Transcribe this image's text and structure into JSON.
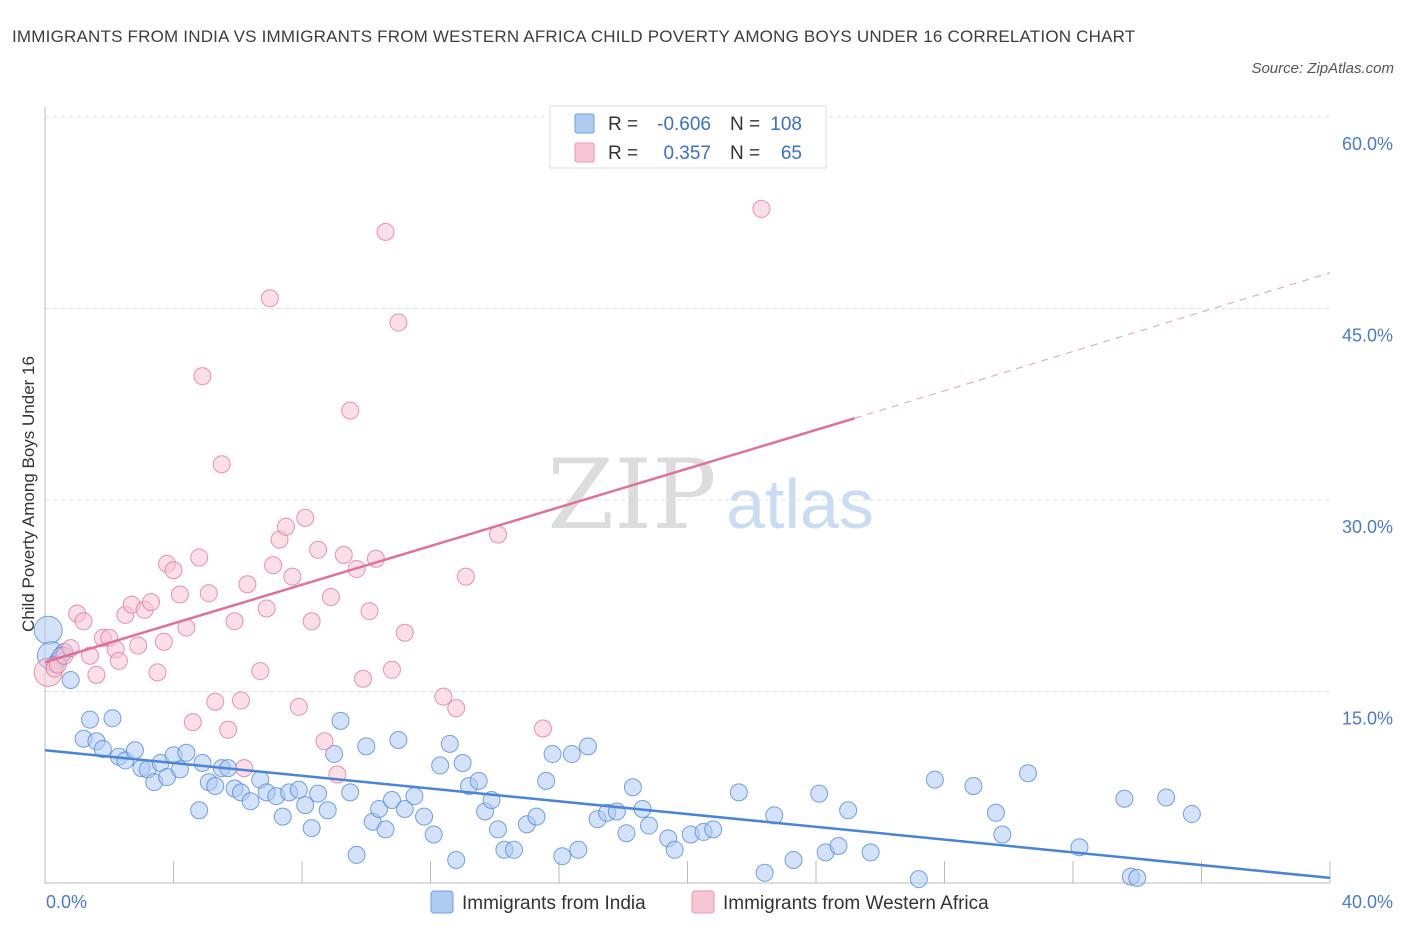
{
  "title": "IMMIGRANTS FROM INDIA VS IMMIGRANTS FROM WESTERN AFRICA CHILD POVERTY AMONG BOYS UNDER 16 CORRELATION CHART",
  "source": "Source: ZipAtlas.com",
  "watermark": {
    "zip": "ZIP",
    "atlas": "atlas"
  },
  "legend": {
    "r_label": "R =",
    "n_label": "N =",
    "rows": [
      {
        "r": "-0.606",
        "n": "108",
        "fill": "#aecbf2",
        "stroke": "#6f9ee0"
      },
      {
        "r": "0.357",
        "n": "65",
        "fill": "#f7c5d3",
        "stroke": "#e996b2"
      }
    ]
  },
  "bottom_legend": [
    "Immigrants from India",
    "Immigrants from Western Africa"
  ],
  "chart_data": {
    "type": "scatter",
    "ylabel": "Child Poverty Among Boys Under 16",
    "x_tick_labels": [
      "0.0%",
      "40.0%"
    ],
    "y_tick_labels": [
      "15.0%",
      "30.0%",
      "45.0%",
      "60.0%"
    ],
    "xlim": [
      0,
      40
    ],
    "ylim": [
      0,
      60
    ],
    "y_ticks": [
      15,
      30,
      45,
      60
    ],
    "grid": true,
    "series": [
      {
        "name": "Immigrants from India",
        "color": "#4a84d8",
        "fill": "#aecbf2",
        "trend": {
          "x": [
            0,
            40
          ],
          "y": [
            10.4,
            0.4
          ],
          "dashed_extension": false
        },
        "points": [
          [
            0.1,
            19.8
          ],
          [
            0.2,
            17.8
          ],
          [
            0.4,
            17.4
          ],
          [
            0.6,
            18.1
          ],
          [
            0.8,
            15.9
          ],
          [
            1.2,
            11.3
          ],
          [
            1.4,
            12.8
          ],
          [
            1.6,
            11.1
          ],
          [
            1.8,
            10.5
          ],
          [
            2.1,
            12.9
          ],
          [
            2.3,
            9.9
          ],
          [
            2.5,
            9.6
          ],
          [
            2.8,
            10.4
          ],
          [
            3.0,
            9.0
          ],
          [
            3.2,
            8.9
          ],
          [
            3.4,
            7.9
          ],
          [
            3.6,
            9.4
          ],
          [
            3.8,
            8.3
          ],
          [
            4.0,
            10.0
          ],
          [
            4.2,
            8.9
          ],
          [
            4.4,
            10.2
          ],
          [
            4.8,
            5.7
          ],
          [
            4.9,
            9.4
          ],
          [
            5.1,
            7.9
          ],
          [
            5.3,
            7.6
          ],
          [
            5.5,
            9.0
          ],
          [
            5.7,
            9.0
          ],
          [
            5.9,
            7.4
          ],
          [
            6.1,
            7.1
          ],
          [
            6.4,
            6.4
          ],
          [
            6.7,
            8.1
          ],
          [
            6.9,
            7.1
          ],
          [
            7.2,
            6.8
          ],
          [
            7.4,
            5.2
          ],
          [
            7.6,
            7.1
          ],
          [
            7.9,
            7.3
          ],
          [
            8.1,
            6.1
          ],
          [
            8.3,
            4.3
          ],
          [
            8.5,
            7.0
          ],
          [
            8.8,
            5.7
          ],
          [
            9.0,
            10.1
          ],
          [
            9.2,
            12.7
          ],
          [
            9.5,
            7.1
          ],
          [
            9.7,
            2.2
          ],
          [
            10.0,
            10.7
          ],
          [
            10.2,
            4.8
          ],
          [
            10.4,
            5.8
          ],
          [
            10.6,
            4.2
          ],
          [
            10.8,
            6.5
          ],
          [
            11.0,
            11.2
          ],
          [
            11.2,
            5.8
          ],
          [
            11.5,
            6.8
          ],
          [
            11.8,
            5.2
          ],
          [
            12.1,
            3.8
          ],
          [
            12.3,
            9.2
          ],
          [
            12.6,
            10.9
          ],
          [
            12.8,
            1.8
          ],
          [
            13.0,
            9.4
          ],
          [
            13.2,
            7.6
          ],
          [
            13.5,
            8.0
          ],
          [
            13.7,
            5.6
          ],
          [
            13.9,
            6.5
          ],
          [
            14.1,
            4.2
          ],
          [
            14.3,
            2.6
          ],
          [
            14.6,
            2.6
          ],
          [
            15.0,
            4.6
          ],
          [
            15.3,
            5.2
          ],
          [
            15.6,
            8.0
          ],
          [
            15.8,
            10.1
          ],
          [
            16.1,
            2.1
          ],
          [
            16.4,
            10.1
          ],
          [
            16.6,
            2.6
          ],
          [
            16.9,
            10.7
          ],
          [
            17.2,
            5.0
          ],
          [
            17.5,
            5.5
          ],
          [
            17.8,
            5.6
          ],
          [
            18.1,
            3.9
          ],
          [
            18.3,
            7.5
          ],
          [
            18.6,
            5.8
          ],
          [
            18.8,
            4.5
          ],
          [
            19.4,
            3.5
          ],
          [
            19.6,
            2.6
          ],
          [
            20.1,
            3.8
          ],
          [
            20.5,
            4.0
          ],
          [
            20.8,
            4.2
          ],
          [
            21.6,
            7.1
          ],
          [
            22.4,
            0.8
          ],
          [
            22.7,
            5.3
          ],
          [
            23.3,
            1.8
          ],
          [
            24.1,
            7.0
          ],
          [
            24.3,
            2.4
          ],
          [
            24.7,
            2.9
          ],
          [
            25.0,
            5.7
          ],
          [
            25.7,
            2.4
          ],
          [
            27.2,
            0.3
          ],
          [
            27.7,
            8.1
          ],
          [
            28.9,
            7.6
          ],
          [
            29.6,
            5.5
          ],
          [
            29.8,
            3.8
          ],
          [
            30.6,
            8.6
          ],
          [
            32.2,
            2.8
          ],
          [
            33.6,
            6.6
          ],
          [
            33.8,
            0.5
          ],
          [
            34.0,
            0.4
          ],
          [
            34.9,
            6.7
          ],
          [
            35.7,
            5.4
          ],
          [
            0.3,
            17.1
          ],
          [
            0.5,
            17.8
          ]
        ]
      },
      {
        "name": "Immigrants from Western Africa",
        "color": "#e07098",
        "fill": "#f7c5d3",
        "trend": {
          "x": [
            0,
            25.2
          ],
          "y": [
            17.3,
            36.4
          ],
          "dashed_x": [
            25.2,
            40
          ],
          "dashed_y": [
            36.4,
            47.8
          ]
        },
        "points": [
          [
            0.1,
            16.5
          ],
          [
            0.3,
            16.8
          ],
          [
            0.4,
            17.1
          ],
          [
            0.6,
            17.8
          ],
          [
            0.8,
            18.4
          ],
          [
            1.0,
            21.1
          ],
          [
            1.2,
            20.5
          ],
          [
            1.4,
            17.8
          ],
          [
            1.6,
            16.3
          ],
          [
            1.8,
            19.2
          ],
          [
            2.0,
            19.2
          ],
          [
            2.2,
            18.3
          ],
          [
            2.3,
            17.4
          ],
          [
            2.5,
            21.0
          ],
          [
            2.7,
            21.8
          ],
          [
            2.9,
            18.6
          ],
          [
            3.1,
            21.4
          ],
          [
            3.3,
            22.0
          ],
          [
            3.5,
            16.5
          ],
          [
            3.7,
            18.9
          ],
          [
            3.8,
            25.0
          ],
          [
            4.0,
            24.5
          ],
          [
            4.2,
            22.6
          ],
          [
            4.4,
            20.0
          ],
          [
            4.6,
            12.6
          ],
          [
            4.8,
            25.5
          ],
          [
            5.1,
            22.7
          ],
          [
            5.3,
            14.2
          ],
          [
            5.5,
            32.8
          ],
          [
            5.7,
            12.0
          ],
          [
            5.9,
            20.5
          ],
          [
            6.1,
            14.3
          ],
          [
            6.3,
            23.4
          ],
          [
            6.7,
            16.6
          ],
          [
            6.9,
            21.5
          ],
          [
            7.1,
            24.9
          ],
          [
            7.3,
            26.9
          ],
          [
            7.5,
            27.9
          ],
          [
            7.7,
            24.0
          ],
          [
            7.9,
            13.8
          ],
          [
            8.1,
            28.6
          ],
          [
            8.3,
            20.5
          ],
          [
            8.5,
            26.1
          ],
          [
            8.7,
            11.1
          ],
          [
            8.9,
            22.4
          ],
          [
            9.1,
            8.5
          ],
          [
            9.3,
            25.7
          ],
          [
            9.5,
            37.0
          ],
          [
            9.7,
            24.6
          ],
          [
            9.9,
            16.0
          ],
          [
            10.1,
            21.3
          ],
          [
            10.3,
            25.4
          ],
          [
            10.6,
            51.0
          ],
          [
            10.8,
            16.7
          ],
          [
            11.0,
            43.9
          ],
          [
            11.2,
            19.6
          ],
          [
            12.4,
            14.6
          ],
          [
            12.8,
            13.7
          ],
          [
            13.1,
            24.0
          ],
          [
            14.1,
            27.3
          ],
          [
            15.5,
            12.1
          ],
          [
            22.3,
            52.8
          ],
          [
            7.0,
            45.8
          ],
          [
            4.9,
            39.7
          ],
          [
            6.2,
            9.0
          ]
        ]
      }
    ]
  }
}
